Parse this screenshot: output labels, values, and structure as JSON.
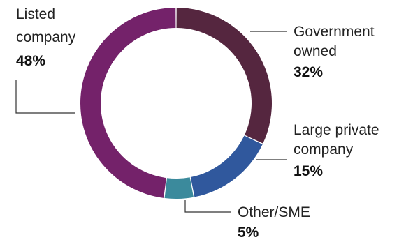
{
  "chart_data": {
    "type": "pie",
    "style": "donut",
    "title": "",
    "slices": [
      {
        "name": "Government owned",
        "label_lines": [
          "Government",
          "owned"
        ],
        "value": 32,
        "value_label": "32%",
        "color": "#55263f"
      },
      {
        "name": "Large private company",
        "label_lines": [
          "Large private",
          "company"
        ],
        "value": 15,
        "value_label": "15%",
        "color": "#30589d"
      },
      {
        "name": "Other/SME",
        "label_lines": [
          "Other/SME"
        ],
        "value": 5,
        "value_label": "5%",
        "color": "#3b8a9c"
      },
      {
        "name": "Listed company",
        "label_lines": [
          "Listed",
          "company"
        ],
        "value": 48,
        "value_label": "48%",
        "color": "#74226a"
      }
    ]
  }
}
